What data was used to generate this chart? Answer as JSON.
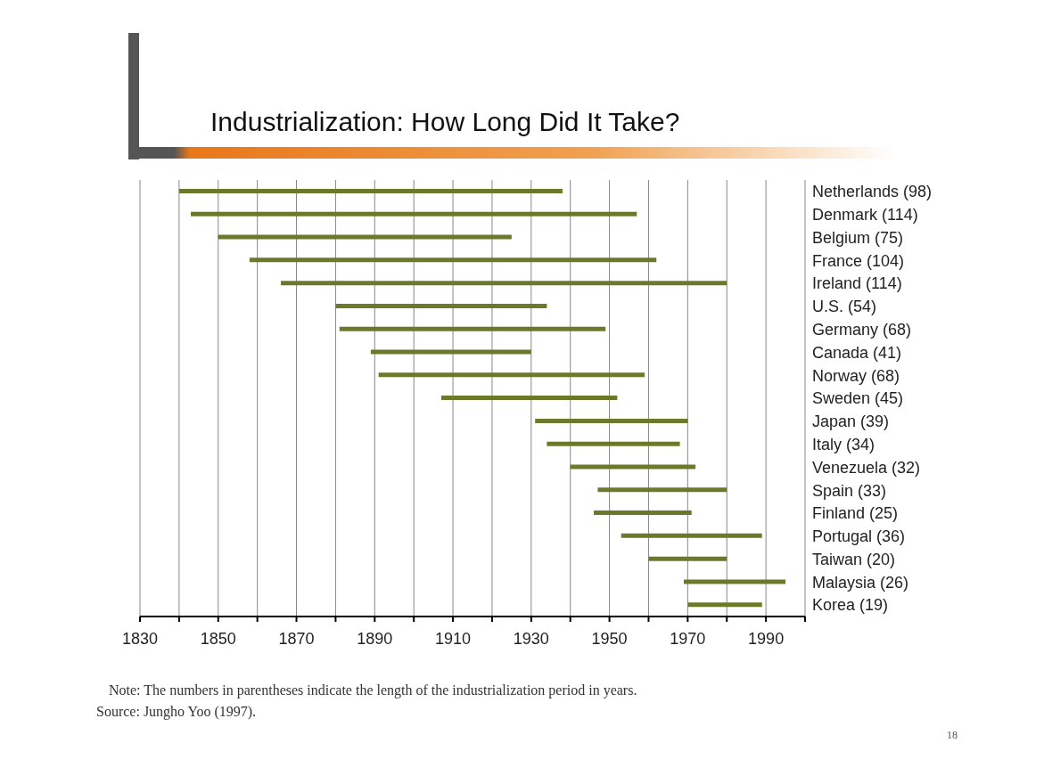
{
  "chart_data": {
    "type": "bar",
    "orientation": "horizontal",
    "title": "Industrialization: How Long Did It Take?",
    "categories": [
      "Netherlands (98)",
      "Denmark (114)",
      "Belgium (75)",
      "France (104)",
      "Ireland (114)",
      "U.S. (54)",
      "Germany (68)",
      "Canada (41)",
      "Norway (68)",
      "Sweden (45)",
      "Japan (39)",
      "Italy (34)",
      "Venezuela (32)",
      "Spain (33)",
      "Finland (25)",
      "Portugal (36)",
      "Taiwan (20)",
      "Malaysia (26)",
      "Korea (19)"
    ],
    "base": [
      1840,
      1843,
      1850,
      1858,
      1866,
      1880,
      1881,
      1889,
      1891,
      1907,
      1931,
      1934,
      1940,
      1947,
      1946,
      1953,
      1960,
      1969,
      1970
    ],
    "values": [
      98,
      114,
      75,
      104,
      114,
      54,
      68,
      41,
      68,
      45,
      39,
      34,
      32,
      33,
      25,
      36,
      20,
      26,
      19
    ],
    "color": "#6b7a2a",
    "xlim": [
      1830,
      2000
    ],
    "xticks": [
      1830,
      {
        "value": 1840,
        "label": null
      },
      1850,
      {
        "value": 1860,
        "label": null
      },
      1870,
      {
        "value": 1880,
        "label": null
      },
      1890,
      {
        "value": 1900,
        "label": null
      },
      1910,
      {
        "value": 1920,
        "label": null
      },
      1930,
      {
        "value": 1940,
        "label": null
      },
      1950,
      {
        "value": 1960,
        "label": null
      },
      1970,
      {
        "value": 1980,
        "label": null
      },
      1990,
      {
        "value": 2000,
        "label": null
      }
    ],
    "grid": "x",
    "annotations": [
      "Note: The numbers in parentheses indicate the length of the industrialization period in years.",
      "Source: Jungho Yoo (1997).",
      "18"
    ]
  }
}
